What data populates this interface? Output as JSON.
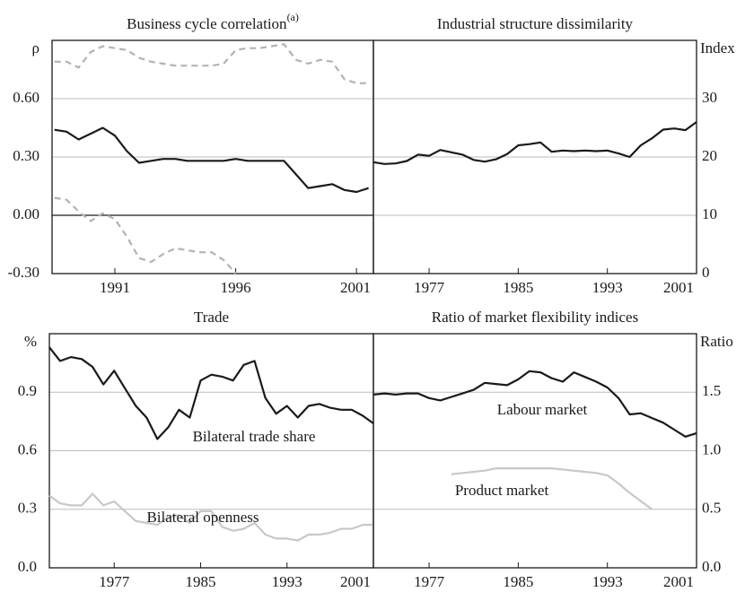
{
  "chart_data": [
    {
      "type": "line",
      "title": "Business cycle correlation",
      "title_superscript": "(a)",
      "ylabel": "ρ",
      "yaxis_position": "left",
      "grid": true,
      "zero_line": true,
      "xlim": [
        1988.4,
        2001.7
      ],
      "xticks": [
        1991,
        1996,
        2001
      ],
      "ylim": [
        -0.3,
        0.9
      ],
      "yticks": [
        {
          "value": -0.3,
          "label": "-0.30"
        },
        {
          "value": 0,
          "label": "0.00"
        },
        {
          "value": 0.3,
          "label": "0.30"
        },
        {
          "value": 0.6,
          "label": "0.60"
        }
      ],
      "x": [
        1988.5,
        1989,
        1989.5,
        1990,
        1990.5,
        1991,
        1991.5,
        1992,
        1992.5,
        1993,
        1993.5,
        1994,
        1994.5,
        1995,
        1995.5,
        1996,
        1996.5,
        1997,
        1997.5,
        1998,
        1998.5,
        1999,
        1999.5,
        2000,
        2000.5,
        2001,
        2001.5
      ],
      "series": [
        {
          "color": "#b3b3b3",
          "dash": true,
          "values": [
            0.79,
            0.79,
            0.76,
            0.84,
            0.87,
            0.86,
            0.85,
            0.81,
            0.79,
            0.78,
            0.77,
            0.77,
            0.77,
            0.77,
            0.78,
            0.85,
            0.86,
            0.86,
            0.87,
            0.88,
            0.8,
            0.78,
            0.8,
            0.79,
            0.7,
            0.68,
            0.68
          ]
        },
        {
          "color": "#1a1a1a",
          "dash": false,
          "values": [
            0.44,
            0.43,
            0.39,
            0.42,
            0.45,
            0.41,
            0.33,
            0.27,
            0.28,
            0.29,
            0.29,
            0.28,
            0.28,
            0.28,
            0.28,
            0.29,
            0.28,
            0.28,
            0.28,
            0.28,
            0.21,
            0.14,
            0.15,
            0.16,
            0.13,
            0.12,
            0.14
          ]
        },
        {
          "color": "#b3b3b3",
          "dash": true,
          "values": [
            0.09,
            0.08,
            0.02,
            -0.03,
            0.01,
            -0.02,
            -0.11,
            -0.22,
            -0.24,
            -0.2,
            -0.17,
            -0.18,
            -0.19,
            -0.19,
            -0.23,
            -0.3,
            null,
            null,
            null,
            null,
            null,
            null,
            null,
            null,
            null,
            null,
            null
          ]
        }
      ]
    },
    {
      "type": "line",
      "title": "Industrial structure dissimilarity",
      "ylabel": "Index",
      "yaxis_position": "right",
      "grid": true,
      "xlim": [
        1972,
        2001
      ],
      "xticks": [
        1977,
        1985,
        1993,
        2001
      ],
      "ylim": [
        0,
        40
      ],
      "yticks": [
        0,
        10,
        20,
        30
      ],
      "x": [
        1972,
        1973,
        1974,
        1975,
        1976,
        1977,
        1978,
        1979,
        1980,
        1981,
        1982,
        1983,
        1984,
        1985,
        1986,
        1987,
        1988,
        1989,
        1990,
        1991,
        1992,
        1993,
        1994,
        1995,
        1996,
        1997,
        1998,
        1999,
        2000,
        2001
      ],
      "series": [
        {
          "color": "#1a1a1a",
          "dash": false,
          "values": [
            19.1,
            18.8,
            18.9,
            19.3,
            20.4,
            20.2,
            21.2,
            20.8,
            20.4,
            19.5,
            19.2,
            19.6,
            20.5,
            22.0,
            22.2,
            22.5,
            20.9,
            21.1,
            21.0,
            21.1,
            21.0,
            21.1,
            20.6,
            20.0,
            22.0,
            23.2,
            24.7,
            24.9,
            24.6,
            26.0
          ]
        }
      ]
    },
    {
      "type": "line",
      "title": "Trade",
      "ylabel": "%",
      "yaxis_position": "left",
      "grid": true,
      "xlim": [
        1971,
        2001
      ],
      "xticks": [
        1977,
        1985,
        1993,
        2001
      ],
      "ylim": [
        0,
        1.2
      ],
      "yticks": [
        {
          "value": 0,
          "label": "0.0"
        },
        0.3,
        0.6,
        0.9
      ],
      "x": [
        1971,
        1972,
        1973,
        1974,
        1975,
        1976,
        1977,
        1978,
        1979,
        1980,
        1981,
        1982,
        1983,
        1984,
        1985,
        1986,
        1987,
        1988,
        1989,
        1990,
        1991,
        1992,
        1993,
        1994,
        1995,
        1996,
        1997,
        1998,
        1999,
        2000,
        2001
      ],
      "series": [
        {
          "name": "Bilateral trade share",
          "color": "#1a1a1a",
          "dash": false,
          "values": [
            1.13,
            1.06,
            1.08,
            1.07,
            1.03,
            0.94,
            1.01,
            0.92,
            0.83,
            0.77,
            0.66,
            0.72,
            0.81,
            0.77,
            0.96,
            0.99,
            0.98,
            0.96,
            1.04,
            1.06,
            0.87,
            0.79,
            0.83,
            0.77,
            0.83,
            0.84,
            0.82,
            0.81,
            0.81,
            0.78,
            0.74
          ]
        },
        {
          "name": "Bilateral openness",
          "color": "#c8c8c8",
          "dash": false,
          "values": [
            0.37,
            0.33,
            0.32,
            0.32,
            0.38,
            0.32,
            0.34,
            0.29,
            0.24,
            0.23,
            0.22,
            0.26,
            0.27,
            0.23,
            0.29,
            0.29,
            0.21,
            0.19,
            0.2,
            0.23,
            0.17,
            0.15,
            0.15,
            0.14,
            0.17,
            0.17,
            0.18,
            0.2,
            0.2,
            0.22,
            0.22
          ]
        }
      ]
    },
    {
      "type": "line",
      "title": "Ratio of market flexibility indices",
      "ylabel": "Ratio",
      "yaxis_position": "right",
      "grid": true,
      "xlim": [
        1972,
        2001
      ],
      "xticks": [
        1977,
        1985,
        1993,
        2001
      ],
      "ylim": [
        0,
        2.0
      ],
      "yticks": [
        {
          "value": 0,
          "label": "0.0"
        },
        0.5,
        {
          "value": 1,
          "label": "1.0"
        },
        1.5
      ],
      "x": [
        1972,
        1973,
        1974,
        1975,
        1976,
        1977,
        1978,
        1979,
        1980,
        1981,
        1982,
        1983,
        1984,
        1985,
        1986,
        1987,
        1988,
        1989,
        1990,
        1991,
        1992,
        1993,
        1994,
        1995,
        1996,
        1997,
        1998,
        1999,
        2000,
        2001
      ],
      "series": [
        {
          "name": "Labour market",
          "color": "#1a1a1a",
          "dash": false,
          "values": [
            1.48,
            1.49,
            1.48,
            1.49,
            1.49,
            1.45,
            1.43,
            1.46,
            1.49,
            1.52,
            1.58,
            1.57,
            1.56,
            1.61,
            1.68,
            1.67,
            1.62,
            1.59,
            1.67,
            1.63,
            1.59,
            1.54,
            1.45,
            1.31,
            1.32,
            1.28,
            1.24,
            1.18,
            1.12,
            1.15
          ]
        },
        {
          "name": "Product market",
          "color": "#c8c8c8",
          "dash": false,
          "values": [
            null,
            null,
            null,
            null,
            null,
            null,
            null,
            0.8,
            0.81,
            0.82,
            0.83,
            0.85,
            0.85,
            0.85,
            0.85,
            0.85,
            0.85,
            0.84,
            0.83,
            0.82,
            0.81,
            0.79,
            0.72,
            0.64,
            0.57,
            0.5,
            null,
            null,
            null,
            null
          ]
        }
      ]
    }
  ]
}
